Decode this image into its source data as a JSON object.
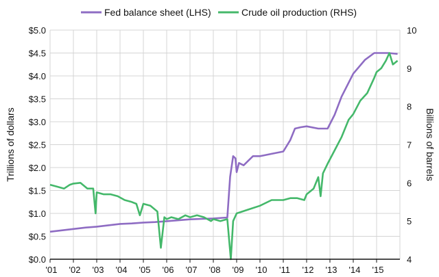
{
  "chart_data": {
    "type": "line",
    "ylabel_left": "Trillions of dollars",
    "ylabel_right": "Billions of barrels",
    "x_ticks": [
      "'01",
      "'02",
      "'03",
      "'04",
      "'05",
      "'06",
      "'07",
      "'08",
      "'09",
      "'10",
      "'11",
      "'12",
      "'13",
      "'14",
      "'15"
    ],
    "y_left_ticks": [
      "$0.0",
      "$0.5",
      "$1.0",
      "$1.5",
      "$2.0",
      "$2.5",
      "$3.0",
      "$3.5",
      "$4.0",
      "$4.5",
      "$5.0"
    ],
    "y_right_ticks": [
      "4",
      "5",
      "6",
      "7",
      "8",
      "9",
      "10"
    ],
    "y_left_range": [
      0,
      5
    ],
    "y_right_range": [
      4,
      10
    ],
    "x_range": [
      2001,
      2016
    ],
    "grid": true,
    "legend_position": "top",
    "series": [
      {
        "name": "Fed balance sheet (LHS)",
        "axis": "left",
        "color": "#8e6cc3",
        "x": [
          2001.0,
          2001.5,
          2002.0,
          2002.5,
          2003.0,
          2003.5,
          2004.0,
          2004.5,
          2005.0,
          2005.5,
          2006.0,
          2006.5,
          2007.0,
          2007.5,
          2008.0,
          2008.6,
          2008.72,
          2008.85,
          2008.95,
          2009.0,
          2009.1,
          2009.3,
          2009.5,
          2009.7,
          2010.0,
          2010.5,
          2011.0,
          2011.3,
          2011.5,
          2011.75,
          2012.0,
          2012.5,
          2012.9,
          2013.2,
          2013.5,
          2014.0,
          2014.5,
          2014.9,
          2015.2,
          2015.5,
          2015.9
        ],
        "y": [
          0.6,
          0.63,
          0.66,
          0.69,
          0.71,
          0.74,
          0.77,
          0.78,
          0.8,
          0.81,
          0.83,
          0.85,
          0.87,
          0.88,
          0.89,
          0.91,
          1.8,
          2.25,
          2.2,
          1.9,
          2.1,
          2.05,
          2.15,
          2.25,
          2.25,
          2.3,
          2.35,
          2.6,
          2.85,
          2.88,
          2.9,
          2.85,
          2.85,
          3.15,
          3.55,
          4.05,
          4.35,
          4.5,
          4.5,
          4.5,
          4.48
        ]
      },
      {
        "name": "Crude oil production (RHS)",
        "axis": "right",
        "color": "#44b86a",
        "x": [
          2001.0,
          2001.3,
          2001.6,
          2001.85,
          2002.0,
          2002.3,
          2002.6,
          2002.85,
          2002.95,
          2003.0,
          2003.3,
          2003.6,
          2003.9,
          2004.2,
          2004.5,
          2004.7,
          2004.85,
          2005.0,
          2005.3,
          2005.6,
          2005.75,
          2005.9,
          2006.0,
          2006.2,
          2006.5,
          2006.8,
          2007.0,
          2007.3,
          2007.6,
          2007.9,
          2008.0,
          2008.3,
          2008.6,
          2008.7,
          2008.75,
          2008.85,
          2009.0,
          2009.5,
          2010.0,
          2010.5,
          2011.0,
          2011.3,
          2011.6,
          2011.9,
          2012.0,
          2012.3,
          2012.5,
          2012.6,
          2012.7,
          2012.9,
          2013.2,
          2013.5,
          2013.8,
          2014.0,
          2014.3,
          2014.6,
          2014.9,
          2015.0,
          2015.2,
          2015.4,
          2015.55,
          2015.7,
          2015.9
        ],
        "y": [
          5.95,
          5.9,
          5.85,
          5.95,
          5.98,
          6.0,
          5.85,
          5.85,
          5.2,
          5.75,
          5.7,
          5.7,
          5.65,
          5.55,
          5.5,
          5.45,
          5.15,
          5.45,
          5.4,
          5.25,
          4.3,
          5.1,
          5.05,
          5.1,
          5.05,
          5.15,
          5.1,
          5.15,
          5.1,
          5.0,
          5.05,
          5.0,
          5.05,
          4.35,
          4.0,
          5.0,
          5.2,
          5.3,
          5.4,
          5.55,
          5.55,
          5.6,
          5.6,
          5.55,
          5.7,
          5.85,
          6.15,
          5.65,
          6.25,
          6.5,
          6.85,
          7.2,
          7.65,
          7.8,
          8.15,
          8.35,
          8.75,
          8.9,
          9.0,
          9.2,
          9.4,
          9.1,
          9.2
        ]
      }
    ]
  }
}
